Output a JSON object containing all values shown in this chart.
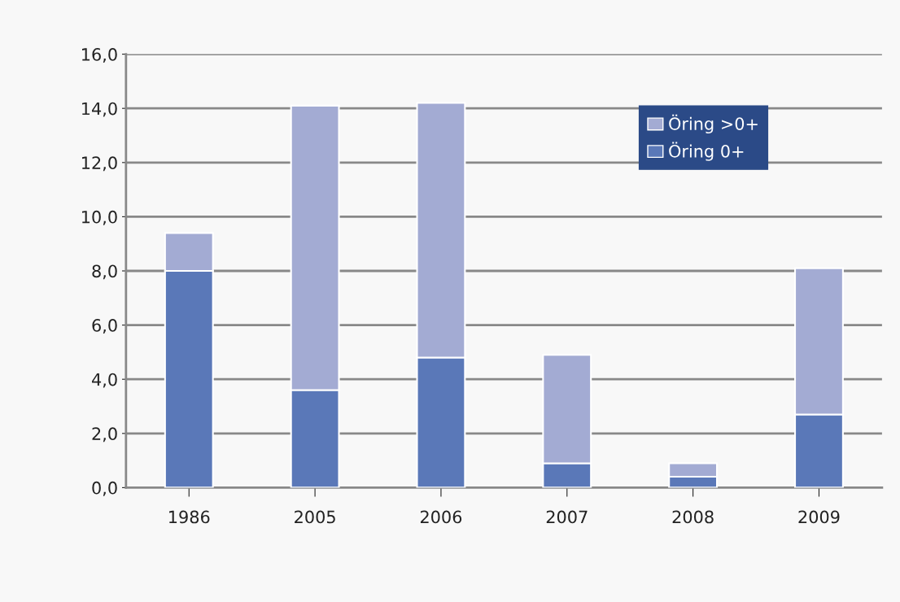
{
  "chart_data": {
    "type": "bar",
    "stacked": true,
    "categories": [
      "1986",
      "2005",
      "2006",
      "2007",
      "2008",
      "2009"
    ],
    "series": [
      {
        "name": "Öring 0+",
        "color": "#5a78b8",
        "values": [
          8.0,
          3.6,
          4.8,
          0.9,
          0.4,
          2.7
        ]
      },
      {
        "name": "Öring >0+",
        "color": "#a3abd3",
        "values": [
          1.4,
          10.5,
          9.4,
          4.0,
          0.5,
          5.4
        ]
      }
    ],
    "ylim": [
      0,
      16
    ],
    "yticks": [
      {
        "value": 0,
        "label": "0,0"
      },
      {
        "value": 2,
        "label": "2,0"
      },
      {
        "value": 4,
        "label": "4,0"
      },
      {
        "value": 6,
        "label": "6,0"
      },
      {
        "value": 8,
        "label": "8,0"
      },
      {
        "value": 10,
        "label": "10,0"
      },
      {
        "value": 12,
        "label": "12,0"
      },
      {
        "value": 14,
        "label": "14,0"
      },
      {
        "value": 16,
        "label": "16,0"
      }
    ],
    "grid": "y",
    "legend": "top right"
  }
}
